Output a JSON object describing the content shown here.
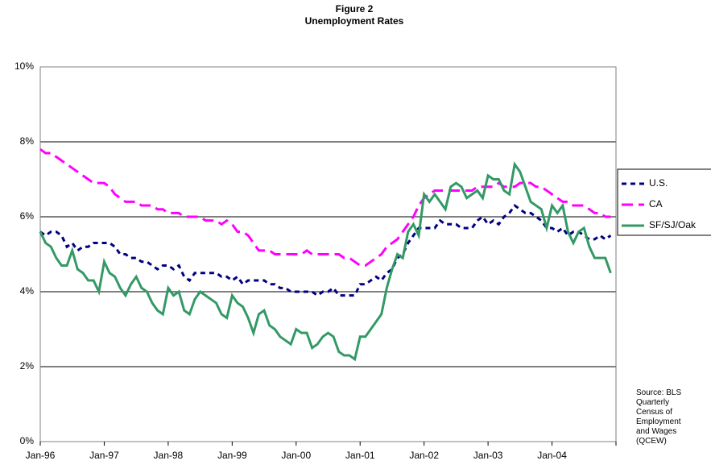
{
  "chart_data": {
    "type": "line",
    "title": "Figure 2",
    "subtitle": "Unemployment Rates",
    "source": "Source: BLS Quarterly Census of Employment and Wages (QCEW)",
    "categories": [
      "Jan-96",
      null,
      null,
      null,
      null,
      null,
      null,
      null,
      null,
      null,
      null,
      null,
      "Jan-97",
      null,
      null,
      null,
      null,
      null,
      null,
      null,
      null,
      null,
      null,
      null,
      "Jan-98",
      null,
      null,
      null,
      null,
      null,
      null,
      null,
      null,
      null,
      null,
      null,
      "Jan-99",
      null,
      null,
      null,
      null,
      null,
      null,
      null,
      null,
      null,
      null,
      null,
      "Jan-00",
      null,
      null,
      null,
      null,
      null,
      null,
      null,
      null,
      null,
      null,
      null,
      "Jan-01",
      null,
      null,
      null,
      null,
      null,
      null,
      null,
      null,
      null,
      null,
      null,
      "Jan-02",
      null,
      null,
      null,
      null,
      null,
      null,
      null,
      null,
      null,
      null,
      null,
      "Jan-03",
      null,
      null,
      null,
      null,
      null,
      null,
      null,
      null,
      null,
      null,
      null,
      "Jan-04",
      null,
      null,
      null,
      null,
      null,
      null,
      null,
      null,
      null,
      null,
      null
    ],
    "series": [
      {
        "name": "U.S.",
        "color": "#000080",
        "dash": "dot",
        "values": [
          5.6,
          5.5,
          5.6,
          5.6,
          5.5,
          5.2,
          5.3,
          5.1,
          5.2,
          5.2,
          5.3,
          5.3,
          5.3,
          5.3,
          5.2,
          5.0,
          5.0,
          4.9,
          4.9,
          4.8,
          4.8,
          4.7,
          4.6,
          4.7,
          4.7,
          4.6,
          4.7,
          4.4,
          4.3,
          4.5,
          4.5,
          4.5,
          4.5,
          4.5,
          4.4,
          4.4,
          4.3,
          4.4,
          4.2,
          4.3,
          4.3,
          4.3,
          4.3,
          4.2,
          4.2,
          4.1,
          4.1,
          4.0,
          4.0,
          4.0,
          4.0,
          4.0,
          3.9,
          4.0,
          4.0,
          4.1,
          3.9,
          3.9,
          3.9,
          3.9,
          4.2,
          4.2,
          4.3,
          4.4,
          4.3,
          4.5,
          4.6,
          4.9,
          5.0,
          5.3,
          5.5,
          5.7,
          5.7,
          5.7,
          5.7,
          5.9,
          5.8,
          5.8,
          5.8,
          5.7,
          5.7,
          5.7,
          5.9,
          6.0,
          5.8,
          5.9,
          5.8,
          6.0,
          6.1,
          6.3,
          6.2,
          6.1,
          6.1,
          6.0,
          5.9,
          5.7,
          5.7,
          5.6,
          5.7,
          5.5,
          5.6,
          5.6,
          5.5,
          5.4,
          5.4,
          5.5,
          5.4,
          5.5
        ]
      },
      {
        "name": "CA",
        "color": "#ff00ff",
        "dash": "dash",
        "values": [
          7.8,
          7.7,
          7.7,
          7.6,
          7.5,
          7.4,
          7.3,
          7.2,
          7.1,
          7.0,
          6.9,
          6.9,
          6.9,
          6.8,
          6.6,
          6.5,
          6.4,
          6.4,
          6.4,
          6.3,
          6.3,
          6.3,
          6.2,
          6.2,
          6.1,
          6.1,
          6.1,
          6.0,
          6.0,
          6.0,
          6.0,
          5.9,
          5.9,
          5.9,
          5.8,
          5.9,
          5.8,
          5.6,
          5.6,
          5.5,
          5.3,
          5.1,
          5.1,
          5.1,
          5.0,
          5.0,
          5.0,
          5.0,
          5.0,
          5.0,
          5.1,
          5.0,
          5.0,
          5.0,
          5.0,
          5.0,
          5.0,
          4.9,
          4.9,
          4.8,
          4.7,
          4.7,
          4.8,
          4.9,
          5.0,
          5.2,
          5.3,
          5.4,
          5.6,
          5.8,
          6.0,
          6.3,
          6.5,
          6.6,
          6.7,
          6.7,
          6.7,
          6.7,
          6.7,
          6.7,
          6.7,
          6.7,
          6.8,
          6.8,
          6.8,
          6.8,
          6.9,
          6.8,
          6.8,
          6.8,
          6.9,
          6.9,
          6.9,
          6.8,
          6.8,
          6.7,
          6.6,
          6.5,
          6.4,
          6.4,
          6.3,
          6.3,
          6.3,
          6.2,
          6.1,
          6.1,
          6.0,
          6.0
        ]
      },
      {
        "name": "SF/SJ/Oak",
        "color": "#339966",
        "dash": "solid",
        "values": [
          5.6,
          5.3,
          5.2,
          4.9,
          4.7,
          4.7,
          5.1,
          4.6,
          4.5,
          4.3,
          4.3,
          4.0,
          4.8,
          4.5,
          4.4,
          4.1,
          3.9,
          4.2,
          4.4,
          4.1,
          4.0,
          3.7,
          3.5,
          3.4,
          4.1,
          3.9,
          4.0,
          3.5,
          3.4,
          3.8,
          4.0,
          3.9,
          3.8,
          3.7,
          3.4,
          3.3,
          3.9,
          3.7,
          3.6,
          3.3,
          2.9,
          3.4,
          3.5,
          3.1,
          3.0,
          2.8,
          2.7,
          2.6,
          3.0,
          2.9,
          2.9,
          2.5,
          2.6,
          2.8,
          2.9,
          2.8,
          2.4,
          2.3,
          2.3,
          2.2,
          2.8,
          2.8,
          3.0,
          3.2,
          3.4,
          4.1,
          4.6,
          5.0,
          4.9,
          5.6,
          5.8,
          5.5,
          6.6,
          6.4,
          6.6,
          6.4,
          6.2,
          6.8,
          6.9,
          6.8,
          6.5,
          6.6,
          6.7,
          6.5,
          7.1,
          7.0,
          7.0,
          6.7,
          6.6,
          7.4,
          7.2,
          6.8,
          6.4,
          6.3,
          6.2,
          5.7,
          6.3,
          6.1,
          6.3,
          5.6,
          5.3,
          5.6,
          5.7,
          5.2,
          4.9,
          4.9,
          4.9,
          4.5
        ]
      }
    ],
    "ylim": [
      0,
      10
    ],
    "yticks": [
      {
        "value": 0,
        "label": "0%"
      },
      {
        "value": 2,
        "label": "2%"
      },
      {
        "value": 4,
        "label": "4%"
      },
      {
        "value": 6,
        "label": "6%"
      },
      {
        "value": 8,
        "label": "8%"
      },
      {
        "value": 10,
        "label": "10%"
      }
    ],
    "grid": true,
    "legend": "right"
  }
}
